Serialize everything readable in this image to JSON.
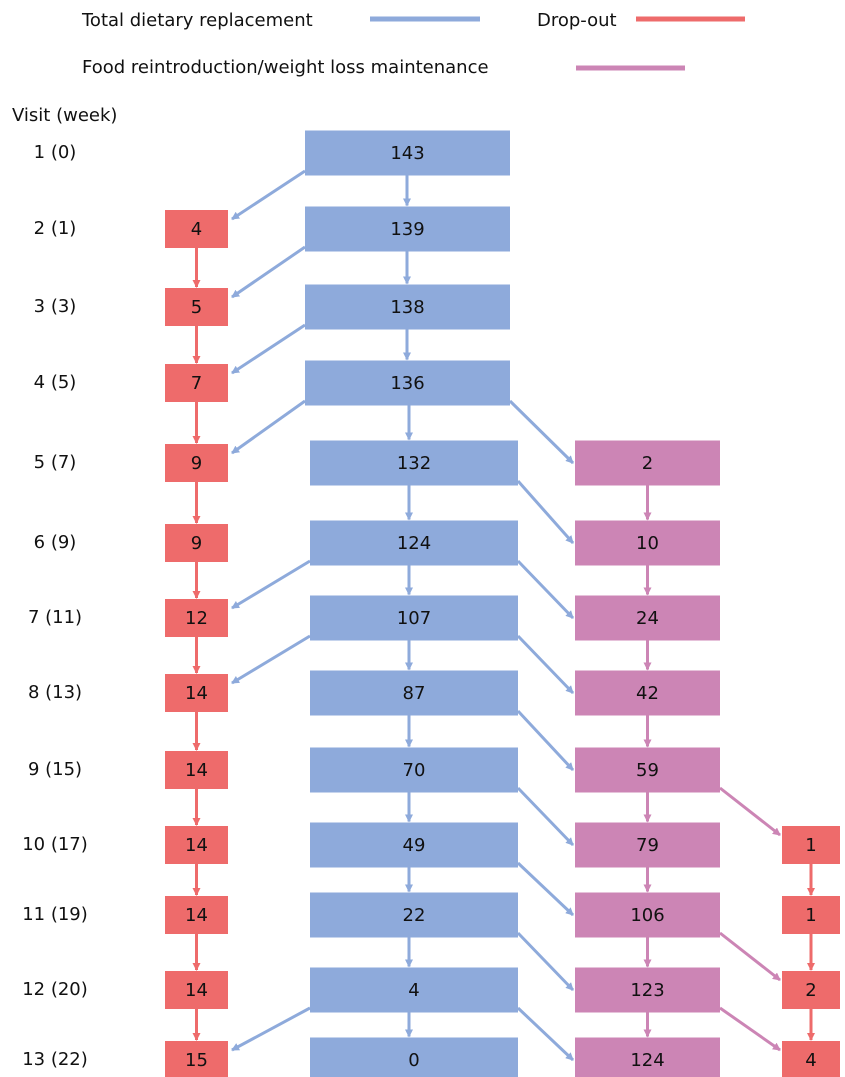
{
  "legend": {
    "tdr": "Total dietary replacement",
    "dropout": "Drop-out",
    "frm": "Food reintroduction/weight loss maintenance"
  },
  "header": "Visit (week)",
  "rows": [
    {
      "visit": "1 (0)",
      "tdr": "143"
    },
    {
      "visit": "2 (1)",
      "tdr": "139",
      "dropout": "4"
    },
    {
      "visit": "3 (3)",
      "tdr": "138",
      "dropout": "5"
    },
    {
      "visit": "4 (5)",
      "tdr": "136",
      "dropout": "7"
    },
    {
      "visit": "5 (7)",
      "tdr": "132",
      "dropout": "9",
      "frm": "2"
    },
    {
      "visit": "6 (9)",
      "tdr": "124",
      "dropout": "9",
      "frm": "10"
    },
    {
      "visit": "7 (11)",
      "tdr": "107",
      "dropout": "12",
      "frm": "24"
    },
    {
      "visit": "8 (13)",
      "tdr": "87",
      "dropout": "14",
      "frm": "42"
    },
    {
      "visit": "9 (15)",
      "tdr": "70",
      "dropout": "14",
      "frm": "59"
    },
    {
      "visit": "10 (17)",
      "tdr": "49",
      "dropout": "14",
      "frm": "79",
      "dropout2": "1"
    },
    {
      "visit": "11 (19)",
      "tdr": "22",
      "dropout": "14",
      "frm": "106",
      "dropout2": "1"
    },
    {
      "visit": "12 (20)",
      "tdr": "4",
      "dropout": "14",
      "frm": "123",
      "dropout2": "2"
    },
    {
      "visit": "13 (22)",
      "tdr": "0",
      "dropout": "15",
      "frm": "124",
      "dropout2": "4"
    }
  ]
}
